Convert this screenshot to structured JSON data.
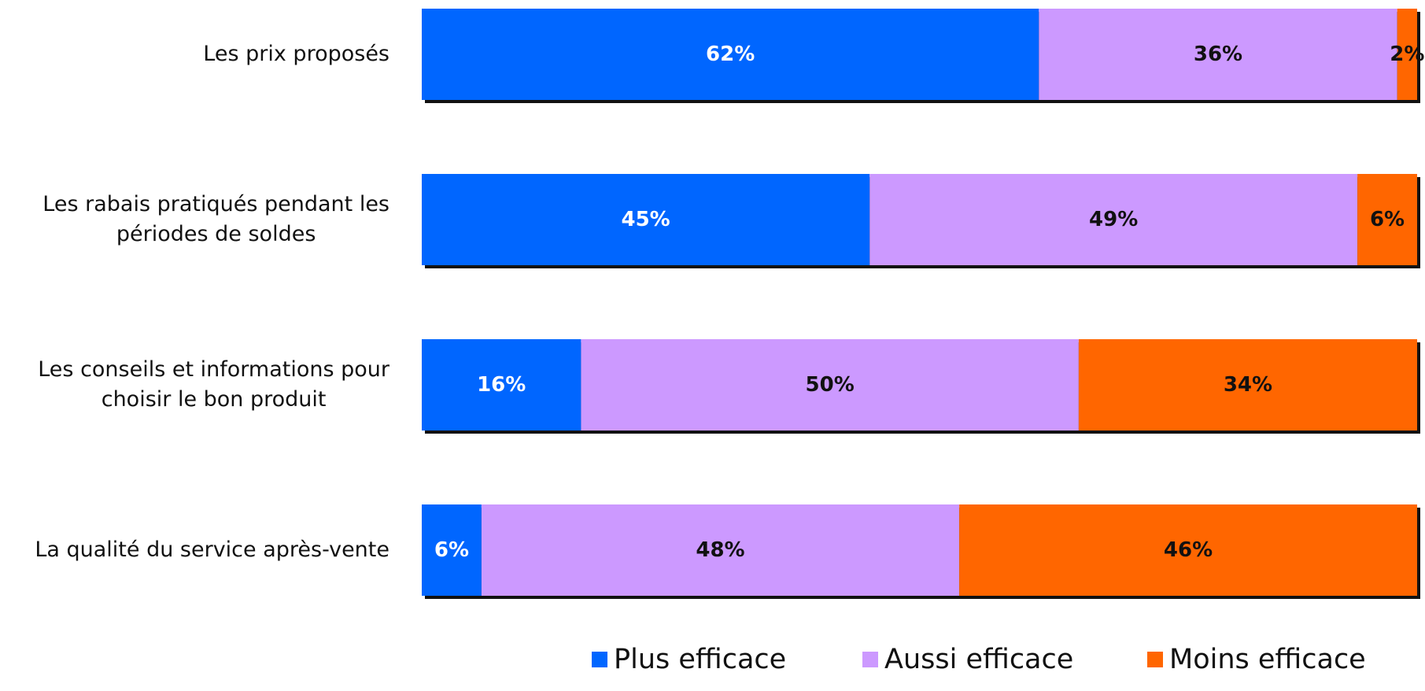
{
  "chart_data": {
    "type": "bar",
    "orientation": "horizontal",
    "stacked": true,
    "normalized": true,
    "categories": [
      "Les prix proposés",
      "Les rabais pratiqués pendant les\npériodes de soldes",
      "Les conseils et informations pour\nchoisir le bon produit",
      "La qualité du service après-vente"
    ],
    "series": [
      {
        "name": "Plus efficace",
        "color": "#0066ff",
        "values": [
          62,
          45,
          16,
          6
        ],
        "labels": [
          "62%",
          "45%",
          "16%",
          "6%"
        ],
        "label_color": "#ffffff"
      },
      {
        "name": "Aussi efficace",
        "color": "#cc99ff",
        "values": [
          36,
          49,
          50,
          48
        ],
        "labels": [
          "36%",
          "49%",
          "50%",
          "48%"
        ],
        "label_color": "#111111"
      },
      {
        "name": "Moins efficace",
        "color": "#ff6600",
        "values": [
          2,
          6,
          34,
          46
        ],
        "labels": [
          "2%",
          "6%",
          "34%",
          "46%"
        ],
        "label_color": "#111111"
      }
    ],
    "xlim": [
      0,
      100
    ],
    "grid": false,
    "legend_position": "bottom"
  }
}
